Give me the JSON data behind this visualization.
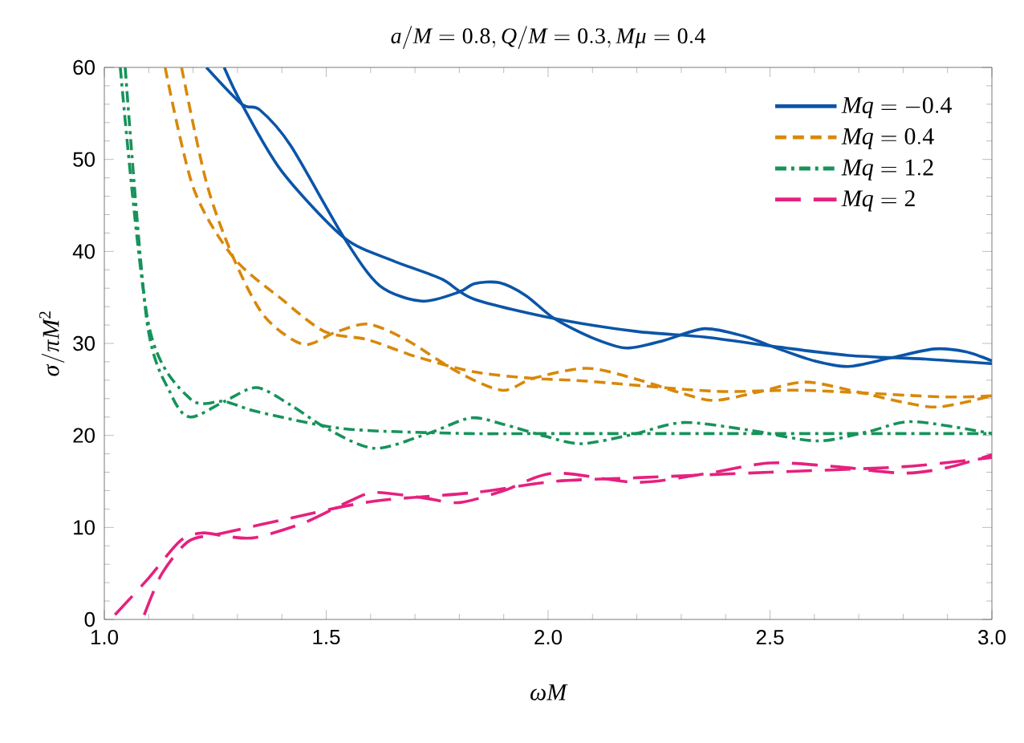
{
  "chart_data": {
    "type": "line",
    "title": "a/M=0.8, Q/M=0.3, M\\mu=0.4",
    "xlabel": "\\omega M",
    "ylabel": "\\sigma/\\pi M^2",
    "xlim": [
      1,
      3
    ],
    "ylim": [
      0,
      60
    ],
    "xticks": [
      {
        "value": 1,
        "label": "1.0"
      },
      {
        "value": 1.5,
        "label": "1.5"
      },
      {
        "value": 2,
        "label": "2.0"
      },
      {
        "value": 2.5,
        "label": "2.5"
      },
      {
        "value": 3,
        "label": "3.0"
      }
    ],
    "yticks": [
      0,
      10,
      20,
      30,
      40,
      50,
      60
    ],
    "legend": "top right",
    "grid": false,
    "series": [
      {
        "name": "Mq=-0.4",
        "color": "#0b55a8",
        "line_style": "solid",
        "x": [
          1.23,
          1.31,
          1.35,
          1.42,
          1.54,
          1.62,
          1.715,
          1.8,
          1.834,
          1.89,
          1.95,
          2.014,
          2.1,
          2.177,
          2.26,
          2.352,
          2.44,
          2.52,
          2.6,
          2.677,
          2.77,
          2.87,
          2.94,
          3.0
        ],
        "values": [
          60,
          56.0,
          55.4,
          51.5,
          41.5,
          36.3,
          34.6,
          35.6,
          36.5,
          36.6,
          35.2,
          32.7,
          30.6,
          29.5,
          30.3,
          31.6,
          30.8,
          29.4,
          28.1,
          27.5,
          28.4,
          29.4,
          29.1,
          28.1
        ]
      },
      {
        "color": "#0b55a8",
        "line_style": "solid",
        "x": [
          1.27,
          1.31,
          1.4,
          1.54,
          1.65,
          1.76,
          1.834,
          2.014,
          2.2,
          2.352,
          2.52,
          2.677,
          2.85,
          3.0
        ],
        "values": [
          60,
          56.0,
          48.7,
          41.5,
          39.0,
          37.0,
          34.8,
          32.7,
          31.3,
          30.7,
          29.6,
          28.7,
          28.3,
          27.8
        ]
      },
      {
        "name": "Mq=0.4",
        "color": "#d8880a",
        "line_style": "dashed",
        "x": [
          1.174,
          1.23,
          1.29,
          1.36,
          1.448,
          1.52,
          1.594,
          1.68,
          1.8,
          1.897,
          1.966,
          2.087,
          2.2,
          2.3,
          2.376,
          2.48,
          2.58,
          2.7,
          2.8,
          2.882,
          3.0
        ],
        "values": [
          60,
          47.5,
          39.4,
          33.0,
          29.9,
          31.2,
          32.1,
          30.4,
          26.8,
          24.9,
          26.2,
          27.3,
          26.1,
          24.6,
          23.8,
          24.8,
          25.8,
          24.7,
          23.6,
          23.1,
          24.3
        ]
      },
      {
        "color": "#d8880a",
        "line_style": "dashed",
        "x": [
          1.137,
          1.2,
          1.29,
          1.4,
          1.496,
          1.594,
          1.7,
          1.834,
          1.966,
          2.087,
          2.376,
          2.58,
          2.882,
          3.0
        ],
        "values": [
          60,
          47.0,
          39.4,
          34.8,
          31.3,
          30.4,
          28.6,
          26.9,
          26.2,
          25.9,
          24.8,
          24.9,
          24.2,
          24.3
        ]
      },
      {
        "name": "Mq=1.2",
        "color": "#17935a",
        "line_style": "dashdot",
        "x": [
          1.047,
          1.096,
          1.15,
          1.193,
          1.271,
          1.343,
          1.42,
          1.5,
          1.608,
          1.729,
          1.825,
          1.9,
          1.994,
          2.075,
          2.19,
          2.304,
          2.45,
          2.605,
          2.72,
          2.822,
          3.0
        ],
        "values": [
          60,
          32.4,
          24.5,
          22.0,
          23.7,
          25.2,
          23.3,
          20.8,
          18.6,
          20.2,
          21.9,
          21.2,
          19.9,
          19.1,
          20.1,
          21.4,
          20.6,
          19.4,
          20.4,
          21.5,
          20.2
        ]
      },
      {
        "color": "#17935a",
        "line_style": "dashdot",
        "x": [
          1.036,
          1.1,
          1.193,
          1.271,
          1.343,
          1.5,
          1.608,
          1.825,
          2.0,
          2.5,
          3.0
        ],
        "values": [
          60,
          32.0,
          24.0,
          23.7,
          22.6,
          21.0,
          20.5,
          20.2,
          20.2,
          20.2,
          20.2
        ]
      },
      {
        "name": "Mq=2",
        "color": "#e5217e",
        "line_style": "longdashed",
        "x": [
          1.024,
          1.1,
          1.17,
          1.22,
          1.28,
          1.34,
          1.45,
          1.55,
          1.61,
          1.72,
          1.8,
          1.9,
          2.014,
          2.2,
          2.35,
          2.5,
          2.65,
          2.8,
          2.9,
          3.0
        ],
        "values": [
          0.5,
          4.5,
          8.5,
          9.4,
          9.0,
          8.9,
          10.5,
          12.8,
          13.8,
          13.2,
          12.7,
          14.0,
          15.9,
          14.9,
          15.8,
          17.0,
          16.6,
          15.9,
          16.5,
          17.9
        ]
      },
      {
        "color": "#e5217e",
        "line_style": "longdashed",
        "x": [
          1.09,
          1.13,
          1.19,
          1.26,
          1.4,
          1.6,
          1.834,
          2.014,
          2.2,
          2.5,
          2.8,
          3.0
        ],
        "values": [
          0.5,
          5.0,
          8.5,
          9.3,
          10.8,
          12.8,
          13.8,
          15.0,
          15.4,
          16.0,
          16.6,
          17.6
        ]
      }
    ]
  }
}
